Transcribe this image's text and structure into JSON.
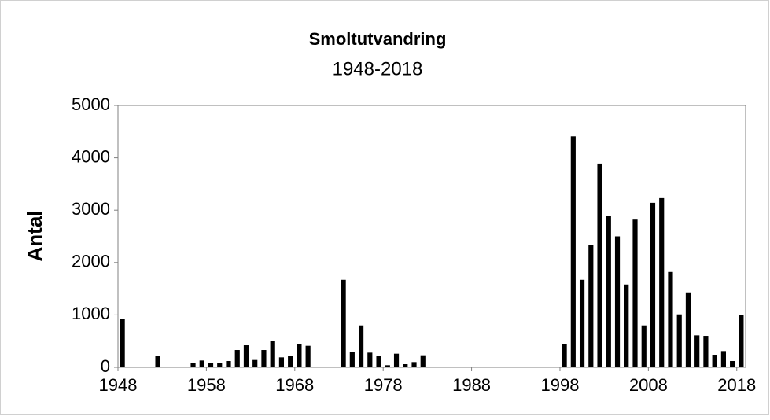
{
  "chart_data": {
    "type": "bar",
    "title": "Smoltutvandring",
    "subtitle": "1948-2018",
    "ylabel": "Antal",
    "x": [
      1948,
      1952,
      1956,
      1957,
      1958,
      1959,
      1960,
      1961,
      1962,
      1963,
      1964,
      1965,
      1966,
      1967,
      1968,
      1969,
      1973,
      1974,
      1975,
      1976,
      1977,
      1978,
      1979,
      1980,
      1981,
      1982,
      1998,
      1999,
      2000,
      2001,
      2002,
      2003,
      2004,
      2005,
      2006,
      2007,
      2008,
      2009,
      2010,
      2011,
      2012,
      2013,
      2014,
      2015,
      2016,
      2017,
      2018
    ],
    "values": [
      920,
      210,
      90,
      130,
      90,
      80,
      120,
      330,
      420,
      140,
      330,
      510,
      190,
      210,
      440,
      410,
      1670,
      300,
      800,
      280,
      210,
      40,
      260,
      60,
      100,
      230,
      440,
      4410,
      1670,
      2330,
      3890,
      2890,
      2500,
      1580,
      2820,
      800,
      3140,
      3230,
      1820,
      1010,
      1430,
      610,
      600,
      240,
      310,
      120,
      1000
    ],
    "color": "#000000",
    "xlim": [
      1948,
      2019
    ],
    "xticks": [
      1948,
      1958,
      1968,
      1978,
      1988,
      1998,
      2008,
      2018
    ],
    "ylim": [
      0,
      5000
    ],
    "yticks": [
      0,
      1000,
      2000,
      3000,
      4000,
      5000
    ]
  }
}
